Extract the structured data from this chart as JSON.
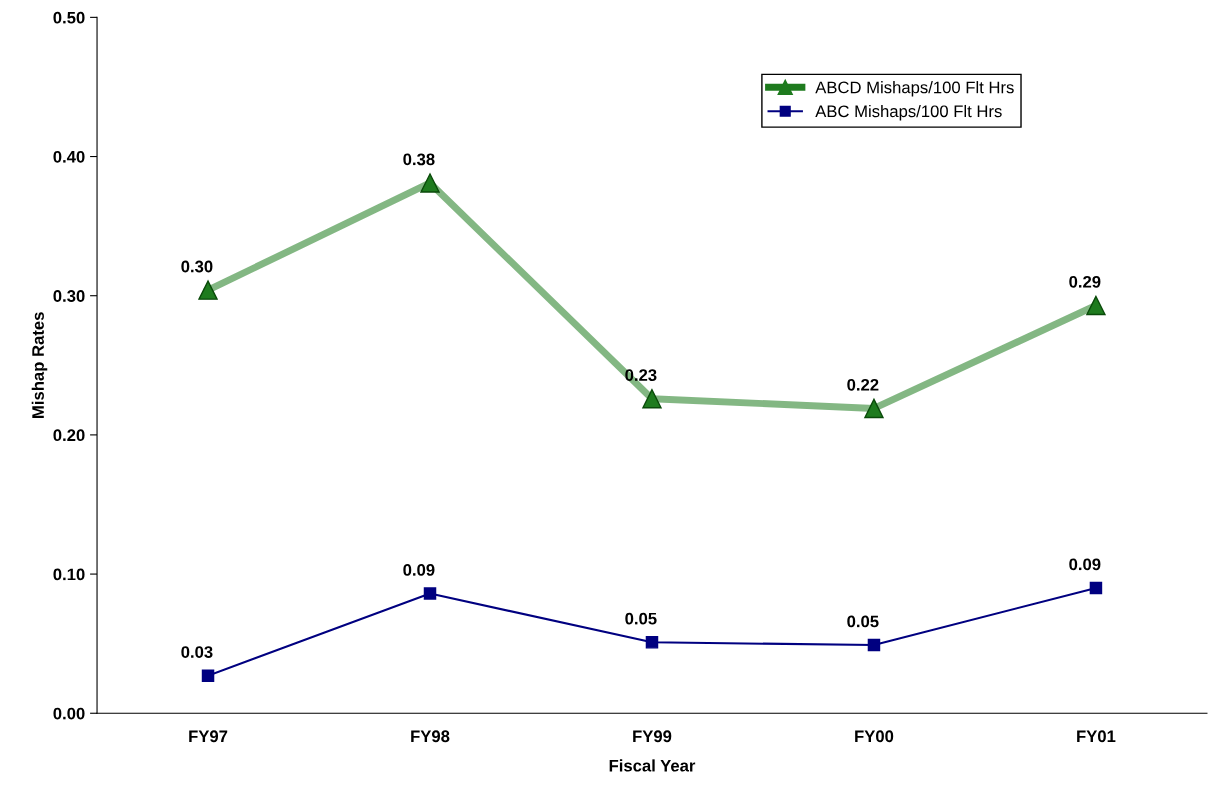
{
  "chart_data": {
    "type": "line",
    "xlabel": "Fiscal Year",
    "ylabel": "Mishap Rates",
    "categories": [
      "FY97",
      "FY98",
      "FY99",
      "FY00",
      "FY01"
    ],
    "series": [
      {
        "name": "ABCD Mishaps/100 Flt Hrs",
        "color": "#1e7b1e",
        "marker": "triangle",
        "values": [
          0.304,
          0.381,
          0.226,
          0.219,
          0.293
        ],
        "value_labels": [
          "0.30",
          "0.38",
          "0.23",
          "0.22",
          "0.29"
        ]
      },
      {
        "name": "ABC Mishaps/100 Flt Hrs",
        "color": "#000080",
        "marker": "square",
        "values": [
          0.027,
          0.086,
          0.051,
          0.049,
          0.09
        ],
        "value_labels": [
          "0.03",
          "0.09",
          "0.05",
          "0.05",
          "0.09"
        ]
      }
    ],
    "ylim": [
      0,
      0.5
    ],
    "yticks": [
      {
        "value": 0,
        "label": "0.00"
      },
      {
        "value": 0.1,
        "label": "0.10"
      },
      {
        "value": 0.2,
        "label": "0.20"
      },
      {
        "value": 0.3,
        "label": "0.30"
      },
      {
        "value": 0.4,
        "label": "0.40"
      },
      {
        "value": 0.5,
        "label": "0.50"
      }
    ],
    "grid": false,
    "legend": "top right"
  }
}
